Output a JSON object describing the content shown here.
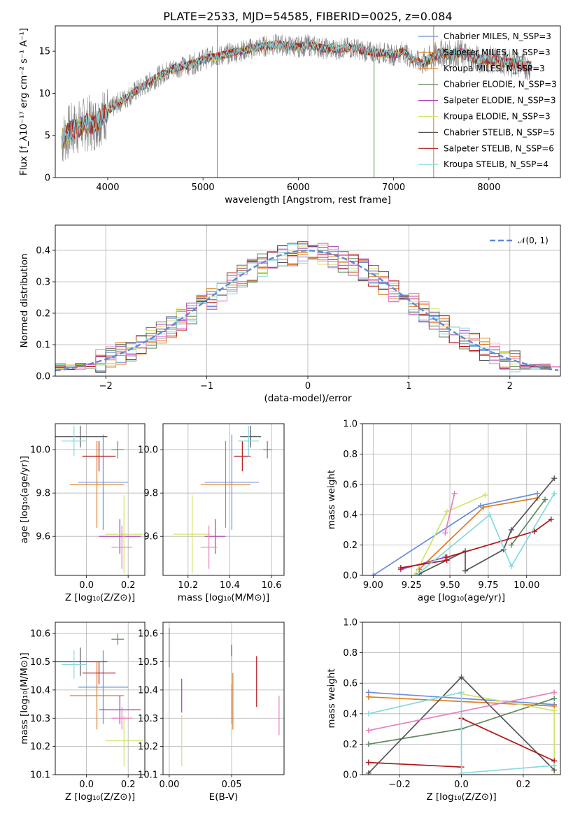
{
  "figure": {
    "title": "PLATE=2533, MJD=54585, FIBERID=0025, z=0.084"
  },
  "colors": {
    "Chabrier MILES": "#6a8fd9",
    "Salpeter MILES": "#e07b20",
    "Kroupa MILES": "#e07b20",
    "Chabrier ELODIE": "#5f8a5f",
    "Salpeter ELODIE": "#a23bb8",
    "Kroupa ELODIE": "#d4e26b",
    "Chabrier STELIB": "#555555",
    "Salpeter STELIB": "#b01818",
    "Kroupa STELIB": "#86d9de",
    "extra_pink": "#e77fbf",
    "model_gauss": "#5b8ad8"
  },
  "chart_data": [
    {
      "type": "line",
      "xlabel": "wavelength [Angstrom, rest frame]",
      "ylabel": "Flux [f_λ10⁻¹⁷ erg cm⁻² s⁻¹ A⁻¹]",
      "xlim": [
        3450,
        8750
      ],
      "ylim": [
        0,
        18
      ],
      "xticks": [
        "4000",
        "5000",
        "6000",
        "7000",
        "8000"
      ],
      "yticks": [
        "0",
        "5",
        "10",
        "15"
      ],
      "legend": [
        "Chabrier MILES, N_SSP=3",
        "Salpeter MILES, N_SSP=3",
        "Kroupa MILES, N_SSP=3",
        "Chabrier ELODIE, N_SSP=3",
        "Salpeter ELODIE, N_SSP=3",
        "Kroupa ELODIE, N_SSP=3",
        "Chabrier STELIB, N_SSP=5",
        "Salpeter STELIB, N_SSP=6",
        "Kroupa STELIB, N_SSP=4"
      ],
      "legend_position": "right",
      "spectrum_profile": {
        "x": [
          3520,
          3600,
          3700,
          3800,
          3850,
          3900,
          4000,
          4100,
          4200,
          4300,
          4400,
          4500,
          4600,
          4700,
          4800,
          4900,
          5000,
          5100,
          5200,
          5300,
          5400,
          5500,
          5600,
          5700,
          5800,
          5900,
          6000,
          6100,
          6200,
          6300,
          6400,
          6500,
          6600,
          6700,
          6800,
          6900,
          7000,
          7100,
          7200,
          7300,
          7400,
          7500,
          7600,
          7700,
          7800,
          7900,
          8000,
          8100,
          8200,
          8300,
          8400
        ],
        "y": [
          4.5,
          5.5,
          6.0,
          6.5,
          6.3,
          6.8,
          7.8,
          8.8,
          9.5,
          10.3,
          11.0,
          11.8,
          12.5,
          13.0,
          13.2,
          13.5,
          14.0,
          14.3,
          14.5,
          14.8,
          15.0,
          15.3,
          15.5,
          15.7,
          15.8,
          15.6,
          15.5,
          15.7,
          15.5,
          15.3,
          15.2,
          15.4,
          15.3,
          15.0,
          14.8,
          14.8,
          14.5,
          15.0,
          14.0,
          13.6,
          14.2,
          14.8,
          14.6,
          14.8,
          14.3,
          14.0,
          14.0,
          13.8,
          13.6,
          13.5,
          13.2
        ]
      },
      "spikes": [
        {
          "x": 5150,
          "y": 18
        },
        {
          "x": 6795,
          "y": 15.5
        },
        {
          "x": 7420,
          "y": 18
        }
      ]
    },
    {
      "type": "line",
      "xlabel": "(data-model)/error",
      "ylabel": "Normed distribution",
      "xlim": [
        -2.5,
        2.5
      ],
      "ylim": [
        0,
        0.48
      ],
      "xticks": [
        "−2",
        "−1",
        "0",
        "1",
        "2"
      ],
      "yticks": [
        "0.0",
        "0.1",
        "0.2",
        "0.3",
        "0.4"
      ],
      "legend": [
        "𝒩(0, 1)"
      ],
      "legend_position": "top-right",
      "bin_width": 0.1,
      "gaussian": {
        "mean": 0,
        "sigma": 1
      }
    },
    {
      "type": "scatter",
      "xlabel": "Z [log₁₀(Z/Z⊙)]",
      "ylabel": "age  [log₁₀(age/yr)]",
      "xlim": [
        -0.15,
        0.28
      ],
      "ylim": [
        9.42,
        10.12
      ],
      "xticks": [
        "0.0",
        "0.2"
      ],
      "yticks": [
        "9.6",
        "9.8",
        "10.0"
      ],
      "errorbars": [
        {
          "series": "Chabrier MILES",
          "x": 0.08,
          "y": 9.85,
          "xerr": 0.12,
          "yerr": 0.22
        },
        {
          "series": "Salpeter MILES",
          "x": 0.05,
          "y": 9.84,
          "xerr": 0.13,
          "yerr": 0.2
        },
        {
          "series": "Chabrier ELODIE",
          "x": 0.15,
          "y": 10.0,
          "xerr": 0.03,
          "yerr": 0.04
        },
        {
          "series": "Salpeter ELODIE",
          "x": 0.16,
          "y": 9.6,
          "xerr": 0.1,
          "yerr": 0.08
        },
        {
          "series": "Kroupa ELODIE",
          "x": 0.18,
          "y": 9.61,
          "xerr": 0.09,
          "yerr": 0.18
        },
        {
          "series": "Chabrier STELIB",
          "x": -0.03,
          "y": 10.06,
          "xerr": 0.13,
          "yerr": 0.05
        },
        {
          "series": "Salpeter STELIB",
          "x": 0.06,
          "y": 9.97,
          "xerr": 0.08,
          "yerr": 0.07
        },
        {
          "series": "Kroupa STELIB",
          "x": -0.06,
          "y": 10.04,
          "xerr": 0.06,
          "yerr": 0.07
        },
        {
          "series": "extra_pink",
          "x": 0.17,
          "y": 9.55,
          "xerr": 0.05,
          "yerr": 0.1
        }
      ]
    },
    {
      "type": "scatter",
      "xlabel": "mass [log₁₀(M/M⊙)]",
      "ylabel": "",
      "xlim": [
        10.08,
        10.66
      ],
      "ylim": [
        9.42,
        10.12
      ],
      "xticks": [
        "10.2",
        "10.4",
        "10.6"
      ],
      "yticks": [
        "9.6",
        "9.8",
        "10.0"
      ],
      "errorbars": [
        {
          "series": "Chabrier MILES",
          "x": 10.41,
          "y": 9.85,
          "xerr": 0.13,
          "yerr": 0.22
        },
        {
          "series": "Salpeter MILES",
          "x": 10.38,
          "y": 9.84,
          "xerr": 0.12,
          "yerr": 0.2
        },
        {
          "series": "Chabrier ELODIE",
          "x": 10.58,
          "y": 10.0,
          "xerr": 0.02,
          "yerr": 0.04
        },
        {
          "series": "Salpeter ELODIE",
          "x": 10.33,
          "y": 9.6,
          "xerr": 0.05,
          "yerr": 0.08
        },
        {
          "series": "Kroupa ELODIE",
          "x": 10.22,
          "y": 9.61,
          "xerr": 0.09,
          "yerr": 0.18
        },
        {
          "series": "Chabrier STELIB",
          "x": 10.5,
          "y": 10.06,
          "xerr": 0.05,
          "yerr": 0.05
        },
        {
          "series": "Salpeter STELIB",
          "x": 10.46,
          "y": 9.97,
          "xerr": 0.04,
          "yerr": 0.07
        },
        {
          "series": "Kroupa STELIB",
          "x": 10.49,
          "y": 10.04,
          "xerr": 0.05,
          "yerr": 0.07
        },
        {
          "series": "extra_pink",
          "x": 10.3,
          "y": 9.55,
          "xerr": 0.04,
          "yerr": 0.1
        }
      ]
    },
    {
      "type": "line",
      "xlabel": "age  [log₁₀(age/yr)]",
      "ylabel": "mass weight",
      "xlim": [
        8.93,
        10.22
      ],
      "ylim": [
        0,
        1.0
      ],
      "xticks": [
        "9.00",
        "9.25",
        "9.50",
        "9.75",
        "10.00"
      ],
      "yticks": [
        "0.0",
        "0.2",
        "0.4",
        "0.6",
        "0.8",
        "1.0"
      ],
      "series": [
        {
          "name": "Chabrier MILES",
          "x": [
            9.0,
            9.7,
            10.07
          ],
          "y": [
            0.0,
            0.46,
            0.54
          ]
        },
        {
          "name": "Salpeter MILES",
          "x": [
            9.3,
            9.72,
            10.07
          ],
          "y": [
            0.04,
            0.45,
            0.51
          ]
        },
        {
          "name": "Chabrier ELODIE",
          "x": [
            9.9,
            10.12
          ],
          "y": [
            0.2,
            0.5
          ]
        },
        {
          "name": "Salpeter ELODIE",
          "x": [
            9.18,
            9.47
          ],
          "y": [
            0.04,
            0.12
          ]
        },
        {
          "name": "Kroupa ELODIE",
          "x": [
            9.27,
            9.48,
            9.73
          ],
          "y": [
            0.0,
            0.42,
            0.53
          ]
        },
        {
          "name": "Chabrier STELIB",
          "x": [
            9.3,
            9.6,
            9.6,
            9.85,
            9.9,
            10.18
          ],
          "y": [
            0.01,
            0.16,
            0.03,
            0.17,
            0.3,
            0.64
          ]
        },
        {
          "name": "Salpeter STELIB",
          "x": [
            9.18,
            9.48,
            9.48,
            10.05,
            10.16
          ],
          "y": [
            0.05,
            0.1,
            0.12,
            0.29,
            0.37
          ]
        },
        {
          "name": "Kroupa STELIB",
          "x": [
            9.28,
            9.76,
            9.9,
            10.18
          ],
          "y": [
            0.0,
            0.4,
            0.06,
            0.54
          ]
        },
        {
          "name": "extra_pink",
          "x": [
            9.47,
            9.53
          ],
          "y": [
            0.28,
            0.54
          ]
        }
      ]
    },
    {
      "type": "scatter",
      "xlabel": "Z [log₁₀(Z/Z⊙)]",
      "ylabel": "mass [log₁₀(M/M⊙)]",
      "xlim": [
        -0.15,
        0.28
      ],
      "ylim": [
        10.1,
        10.64
      ],
      "xticks": [
        "0.0",
        "0.2"
      ],
      "yticks": [
        "10.1",
        "10.2",
        "10.3",
        "10.4",
        "10.5",
        "10.6"
      ],
      "errorbars": [
        {
          "series": "Chabrier MILES",
          "x": 0.08,
          "y": 10.41,
          "xerr": 0.12,
          "yerr": 0.13
        },
        {
          "series": "Salpeter MILES",
          "x": 0.05,
          "y": 10.38,
          "xerr": 0.13,
          "yerr": 0.12
        },
        {
          "series": "Chabrier ELODIE",
          "x": 0.15,
          "y": 10.58,
          "xerr": 0.03,
          "yerr": 0.02
        },
        {
          "series": "Salpeter ELODIE",
          "x": 0.16,
          "y": 10.33,
          "xerr": 0.1,
          "yerr": 0.05
        },
        {
          "series": "Kroupa ELODIE",
          "x": 0.18,
          "y": 10.22,
          "xerr": 0.09,
          "yerr": 0.09
        },
        {
          "series": "Chabrier STELIB",
          "x": -0.03,
          "y": 10.5,
          "xerr": 0.13,
          "yerr": 0.05
        },
        {
          "series": "Salpeter STELIB",
          "x": 0.06,
          "y": 10.46,
          "xerr": 0.08,
          "yerr": 0.04
        },
        {
          "series": "Kroupa STELIB",
          "x": -0.06,
          "y": 10.49,
          "xerr": 0.06,
          "yerr": 0.05
        },
        {
          "series": "extra_pink",
          "x": 0.17,
          "y": 10.3,
          "xerr": 0.05,
          "yerr": 0.04
        }
      ]
    },
    {
      "type": "scatter",
      "xlabel": "E(B-V)",
      "ylabel": "",
      "xlim": [
        -0.005,
        0.092
      ],
      "ylim": [
        10.1,
        10.64
      ],
      "xticks": [
        "0.00",
        "0.05"
      ],
      "yticks": [
        "10.1",
        "10.2",
        "10.3",
        "10.4",
        "10.5",
        "10.6"
      ],
      "errorbars": [
        {
          "series": "Chabrier MILES",
          "x": 0.05,
          "y": 10.41,
          "xerr": 0,
          "yerr": 0.13
        },
        {
          "series": "Salpeter MILES",
          "x": 0.051,
          "y": 10.36,
          "xerr": 0,
          "yerr": 0.1
        },
        {
          "series": "Chabrier ELODIE",
          "x": 0.0,
          "y": 10.55,
          "xerr": 0,
          "yerr": 0.07
        },
        {
          "series": "Salpeter ELODIE",
          "x": 0.01,
          "y": 10.38,
          "xerr": 0,
          "yerr": 0.06
        },
        {
          "series": "Kroupa ELODIE",
          "x": 0.01,
          "y": 10.22,
          "xerr": 0,
          "yerr": 0.09
        },
        {
          "series": "Chabrier STELIB",
          "x": 0.05,
          "y": 10.5,
          "xerr": 0,
          "yerr": 0.06
        },
        {
          "series": "Salpeter STELIB",
          "x": 0.07,
          "y": 10.43,
          "xerr": 0,
          "yerr": 0.09
        },
        {
          "series": "Kroupa STELIB",
          "x": 0.05,
          "y": 10.47,
          "xerr": 0,
          "yerr": 0.05
        },
        {
          "series": "extra_pink",
          "x": 0.088,
          "y": 10.31,
          "xerr": 0,
          "yerr": 0.07
        }
      ]
    },
    {
      "type": "line",
      "xlabel": "Z [log₁₀(Z/Z⊙)]",
      "ylabel": "mass weight",
      "xlim": [
        -0.32,
        0.32
      ],
      "ylim": [
        0,
        1.0
      ],
      "xticks": [
        "−0.2",
        "0.0",
        "0.2"
      ],
      "yticks": [
        "0.0",
        "0.2",
        "0.4",
        "0.6",
        "0.8",
        "1.0"
      ],
      "series": [
        {
          "name": "Chabrier MILES",
          "x": [
            -0.3,
            0.3
          ],
          "y": [
            0.54,
            0.46
          ]
        },
        {
          "name": "Salpeter MILES",
          "x": [
            -0.3,
            0.3
          ],
          "y": [
            0.51,
            0.45
          ]
        },
        {
          "name": "Chabrier ELODIE",
          "x": [
            -0.3,
            0.0,
            0.3
          ],
          "y": [
            0.2,
            0.3,
            0.5
          ]
        },
        {
          "name": "Kroupa ELODIE",
          "x": [
            0.0,
            0.3,
            0.3
          ],
          "y": [
            0.53,
            0.42,
            0.0
          ]
        },
        {
          "name": "Chabrier STELIB",
          "x": [
            -0.3,
            0.0,
            0.3
          ],
          "y": [
            0.01,
            0.64,
            0.03
          ]
        },
        {
          "name": "Salpeter STELIB",
          "x": [
            -0.3,
            0.0
          ],
          "y": [
            0.08,
            0.05
          ]
        },
        {
          "name": "Salpeter STELIB (2)",
          "x": [
            0.0,
            0.3
          ],
          "y": [
            0.37,
            0.09
          ]
        },
        {
          "name": "Kroupa STELIB",
          "x": [
            -0.3,
            0.0,
            0.0,
            0.3
          ],
          "y": [
            0.4,
            0.54,
            0.01,
            0.06
          ]
        },
        {
          "name": "extra_pink",
          "x": [
            -0.3,
            0.3
          ],
          "y": [
            0.29,
            0.54
          ]
        }
      ]
    }
  ]
}
